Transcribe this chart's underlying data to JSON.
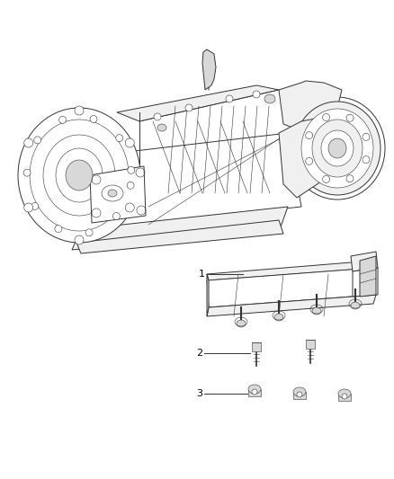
{
  "background_color": "#ffffff",
  "fig_width": 4.38,
  "fig_height": 5.33,
  "dpi": 100,
  "label_1": "1",
  "label_2": "2",
  "label_3": "3",
  "label_color": "#000000",
  "line_color": "#333333",
  "fill_white": "#ffffff",
  "fill_light": "#f0f0f0",
  "fill_mid": "#d8d8d8",
  "lw_main": 0.7,
  "lw_thin": 0.4,
  "lw_thick": 1.0
}
